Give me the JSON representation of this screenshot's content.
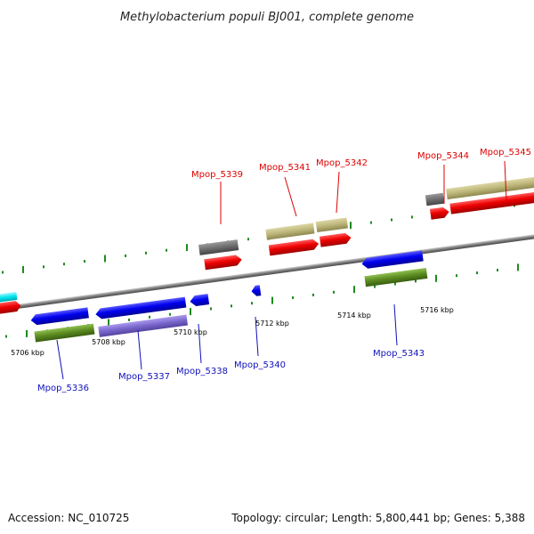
{
  "title": "Methylobacterium populi BJ001, complete genome",
  "footer": {
    "accession": "Accession: NC_010725",
    "summary": "Topology: circular; Length: 5,800,441 bp; Genes: 5,388"
  },
  "colors": {
    "forward_label": "#dd0000",
    "reverse_label": "#1010bb",
    "backbone": "#7a7a7a",
    "tick": "#1e8a1e",
    "cds_forward": "#ee0000",
    "cds_reverse": "#0000dd",
    "tan": "#bdb67a",
    "gray": "#6e6e6e",
    "olive": "#5a8a20",
    "lavender": "#7a66cc",
    "cyan": "#00e5ee"
  },
  "tick_labels": [
    "5706 kbp",
    "5708 kbp",
    "5710 kbp",
    "5712 kbp",
    "5714 kbp",
    "5716 kbp"
  ],
  "forward_genes": [
    "Mpop_5339",
    "Mpop_5341",
    "Mpop_5342",
    "Mpop_5344",
    "Mpop_5345"
  ],
  "reverse_genes": [
    "Mpop_5336",
    "Mpop_5337",
    "Mpop_5338",
    "Mpop_5340",
    "Mpop_5343"
  ]
}
